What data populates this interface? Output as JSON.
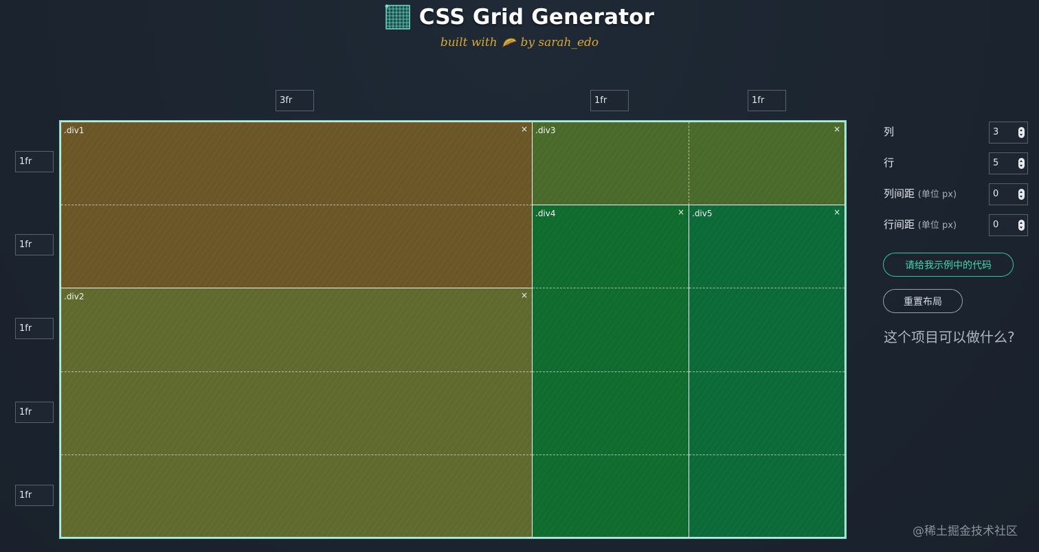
{
  "header": {
    "title": "CSS Grid Generator",
    "subtitle_prefix": "built with",
    "subtitle_suffix": "by sarah_edo"
  },
  "columns": {
    "count": 3,
    "values": [
      "3fr",
      "1fr",
      "1fr"
    ]
  },
  "rows": {
    "count": 5,
    "values": [
      "1fr",
      "1fr",
      "1fr",
      "1fr",
      "1fr"
    ]
  },
  "areas": [
    {
      "name": ".div1",
      "close": "×",
      "color": "#6b5628"
    },
    {
      "name": ".div2",
      "close": "×",
      "color": "#616a2e"
    },
    {
      "name": ".div3",
      "close": "×",
      "color": "#4a6a2b"
    },
    {
      "name": ".div4",
      "close": "×",
      "color": "#0f6b2e"
    },
    {
      "name": ".div5",
      "close": "×",
      "color": "#0c6a39"
    }
  ],
  "controls": {
    "columns_label": "列",
    "columns_value": "3",
    "rows_label": "行",
    "rows_value": "5",
    "column_gap_label": "列间距",
    "column_gap_unit": "(单位 px)",
    "column_gap_value": "0",
    "row_gap_label": "行间距",
    "row_gap_unit": "(单位 px)",
    "row_gap_value": "0",
    "code_button": "请给我示例中的代码",
    "reset_button": "重置布局",
    "what_link": "这个项目可以做什么?"
  },
  "colors": {
    "grid_border": "#7fe3c9",
    "accent": "#36c7a1",
    "brand_yellow": "#d9a736"
  },
  "watermark": "@稀土掘金技术社区"
}
